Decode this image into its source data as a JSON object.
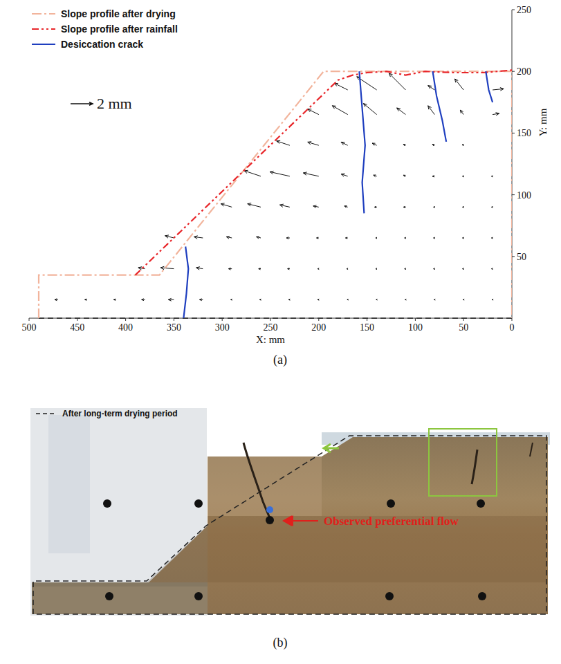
{
  "chart_data": {
    "type": "vector_field",
    "x_label": "X: mm",
    "y_label": "Y: mm",
    "xlim": [
      500,
      0
    ],
    "xticks": [
      500,
      450,
      400,
      350,
      300,
      250,
      200,
      150,
      100,
      50,
      0
    ],
    "ylim": [
      0,
      250
    ],
    "yticks": [
      50,
      100,
      150,
      200,
      250
    ],
    "legend": "upper left",
    "scale_arrow": {
      "value": 2,
      "label": "2 mm"
    },
    "series": [
      {
        "name": "Slope profile after drying",
        "color": "#f2b49c",
        "line_style": "dashdot",
        "x": [
          490,
          490,
          365,
          195,
          0,
          0
        ],
        "y": [
          0,
          35,
          35,
          200,
          200,
          0
        ]
      },
      {
        "name": "Slope profile after rainfall",
        "color": "#e8262a",
        "line_style": "dashdotdot",
        "x": [
          390,
          180,
          165,
          150,
          130,
          110,
          90,
          60,
          30,
          0
        ],
        "y": [
          35,
          193,
          197,
          199,
          200,
          197,
          200,
          199,
          199,
          201
        ]
      },
      {
        "name": "Desiccation crack",
        "color": "#1f3fbf",
        "line_style": "solid",
        "x": [
          158,
          155,
          152,
          155,
          153,
          null,
          82,
          78,
          72,
          68,
          null,
          27,
          24,
          20,
          null,
          338,
          335,
          337,
          340
        ],
        "y": [
          200,
          170,
          140,
          110,
          85,
          null,
          200,
          180,
          160,
          143,
          null,
          200,
          185,
          175,
          null,
          58,
          40,
          20,
          0
        ]
      }
    ],
    "vectors": {
      "x": [
        470,
        440,
        410,
        380,
        350,
        320,
        290,
        260,
        230,
        200,
        170,
        140,
        110,
        80,
        50,
        20,
        380,
        350,
        320,
        290,
        260,
        230,
        200,
        170,
        140,
        110,
        80,
        50,
        20,
        350,
        320,
        290,
        260,
        230,
        200,
        170,
        140,
        110,
        80,
        50,
        20,
        290,
        260,
        230,
        200,
        170,
        140,
        110,
        80,
        50,
        20,
        260,
        230,
        200,
        170,
        140,
        110,
        80,
        50,
        20,
        230,
        200,
        170,
        140,
        110,
        80,
        50,
        20,
        200,
        170,
        140,
        110,
        80,
        50,
        20,
        170,
        140,
        110,
        80,
        50,
        20
      ],
      "y": [
        15,
        15,
        15,
        15,
        15,
        15,
        15,
        15,
        15,
        15,
        15,
        15,
        15,
        15,
        15,
        15,
        40,
        40,
        40,
        40,
        40,
        40,
        40,
        40,
        40,
        40,
        40,
        40,
        40,
        65,
        65,
        65,
        65,
        65,
        65,
        65,
        65,
        65,
        65,
        65,
        65,
        90,
        90,
        90,
        90,
        90,
        90,
        90,
        90,
        90,
        90,
        115,
        115,
        115,
        115,
        115,
        115,
        115,
        115,
        115,
        140,
        140,
        140,
        140,
        140,
        140,
        140,
        140,
        165,
        165,
        165,
        165,
        165,
        165,
        165,
        185,
        185,
        185,
        185,
        185,
        185
      ],
      "u": [
        0.3,
        0.2,
        0.2,
        0.3,
        0.5,
        0.3,
        0.1,
        0.1,
        0.1,
        0.1,
        0.05,
        0.05,
        0.05,
        0.05,
        0.05,
        0.05,
        0.6,
        1.2,
        0.6,
        0.3,
        0.2,
        0.2,
        0.1,
        0.1,
        0.1,
        0.1,
        0.1,
        0.1,
        0.1,
        0.8,
        0.8,
        0.5,
        0.4,
        0.3,
        0.2,
        0.2,
        0.1,
        0.1,
        0.1,
        0.1,
        0.1,
        1.0,
        1.2,
        0.9,
        0.5,
        0.3,
        0.2,
        0.2,
        0.1,
        0.1,
        0.1,
        1.5,
        1.8,
        1.4,
        0.6,
        0.3,
        0.2,
        0.2,
        0.1,
        0.1,
        1.2,
        1.0,
        0.6,
        0.4,
        0.2,
        0.2,
        0.1,
        0,
        1.0,
        1.4,
        1.2,
        0.8,
        0.6,
        0.3,
        -0.6,
        1.2,
        1.8,
        1.5,
        0.6,
        0.8,
        -1.0
      ],
      "v": [
        0,
        0,
        0,
        0,
        0,
        0,
        0,
        0,
        0,
        0,
        0,
        0,
        0,
        0,
        0,
        0,
        0.1,
        0.1,
        0.1,
        0,
        0,
        0,
        0,
        0,
        0,
        0,
        0,
        0,
        0,
        0.2,
        0.1,
        0.1,
        0.1,
        0,
        0,
        0,
        0,
        0,
        0,
        0,
        0,
        0.3,
        0.3,
        0.2,
        0.1,
        0.1,
        0,
        0,
        0,
        0,
        0,
        0.5,
        0.4,
        0.3,
        0.2,
        0.1,
        0.1,
        0,
        0,
        0,
        0.4,
        0.3,
        0.3,
        0.2,
        0.1,
        0.1,
        0.1,
        0,
        0.5,
        0.8,
        1.0,
        0.6,
        0.8,
        0.4,
        0.1,
        0.6,
        1.2,
        1.5,
        0.4,
        1.0,
        0.1
      ]
    }
  },
  "panel_labels": [
    "(a)",
    "(b)"
  ],
  "panel_b": {
    "legend_label": "After long-term drying period",
    "annotation": "Observed preferential flow"
  }
}
